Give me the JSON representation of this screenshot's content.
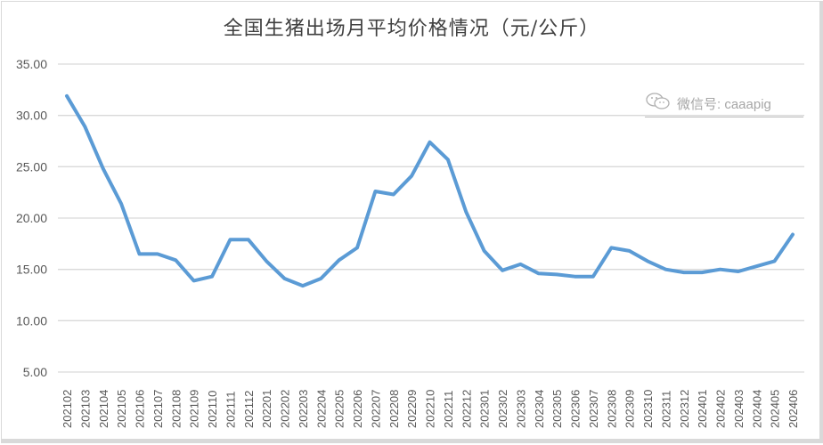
{
  "chart_data": {
    "type": "line",
    "title": "全国生猪出场月平均价格情况（元/公斤）",
    "xlabel": "",
    "ylabel": "",
    "ylim": [
      5,
      35
    ],
    "yticks": [
      "35.00",
      "30.00",
      "25.00",
      "20.00",
      "15.00",
      "10.00",
      "5.00"
    ],
    "grid": true,
    "legend": null,
    "categories": [
      "202102",
      "202103",
      "202104",
      "202105",
      "202106",
      "202107",
      "202108",
      "202109",
      "202110",
      "202111",
      "202112",
      "202201",
      "202202",
      "202203",
      "202204",
      "202205",
      "202206",
      "202207",
      "202208",
      "202209",
      "202210",
      "202211",
      "202212",
      "202301",
      "202302",
      "202303",
      "202304",
      "202305",
      "202306",
      "202307",
      "202308",
      "202309",
      "202310",
      "202311",
      "202312",
      "202401",
      "202402",
      "202403",
      "202404",
      "202405",
      "202406"
    ],
    "series": [
      {
        "name": "生猪出场月平均价格",
        "color": "#5b9bd5",
        "values": [
          31.9,
          28.9,
          24.8,
          21.4,
          16.5,
          16.5,
          15.9,
          13.9,
          14.3,
          17.9,
          17.9,
          15.8,
          14.1,
          13.4,
          14.1,
          15.9,
          17.1,
          22.6,
          22.3,
          24.1,
          27.4,
          25.7,
          20.6,
          16.8,
          14.9,
          15.5,
          14.6,
          14.5,
          14.3,
          14.3,
          17.1,
          16.8,
          15.8,
          15.0,
          14.7,
          14.7,
          15.0,
          14.8,
          15.3,
          15.8,
          18.4
        ]
      }
    ]
  },
  "watermark": {
    "icon": "wechat-icon",
    "text": "微信号: caaapig"
  },
  "colors": {
    "line": "#5b9bd5",
    "grid": "#d9d9d9",
    "text": "#595959",
    "title": "#404040"
  }
}
